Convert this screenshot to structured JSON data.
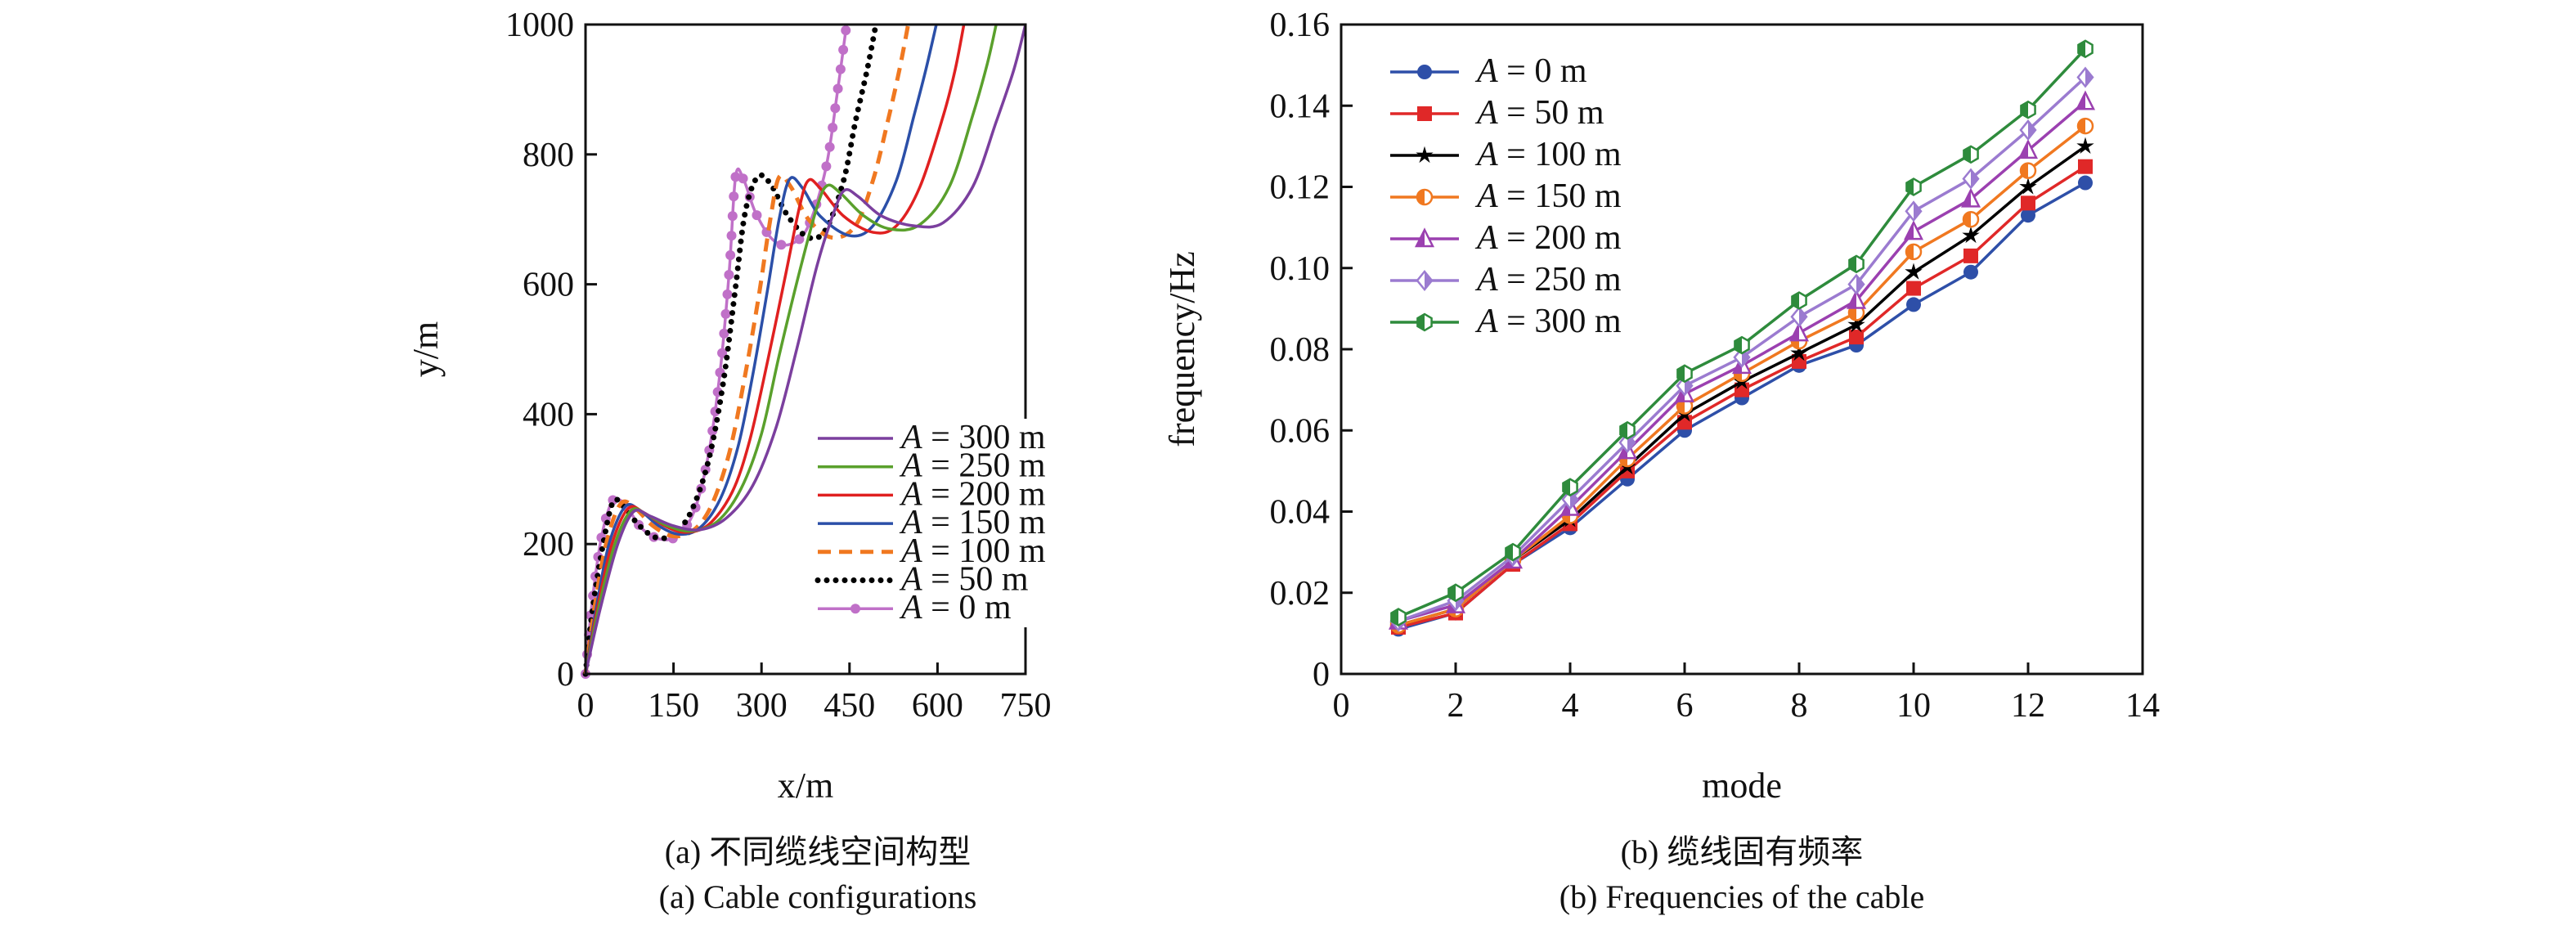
{
  "chart_data": [
    {
      "type": "line",
      "caption_cn": "(a) 不同缆线空间构型",
      "caption_en": "(a) Cable configurations",
      "xlabel": "x/m",
      "ylabel": "y/m",
      "xlim": [
        0,
        750
      ],
      "ylim": [
        0,
        1000
      ],
      "xticks": [
        0,
        150,
        300,
        450,
        600,
        750
      ],
      "yticks": [
        0,
        200,
        400,
        600,
        800,
        1000
      ],
      "grid": false,
      "legend_position": "bottom-right",
      "series": [
        {
          "name": "A = 300 m",
          "color": "#7B3F9E",
          "style": "solid",
          "x": [
            0,
            25,
            55,
            82,
            110,
            150,
            195,
            240,
            285,
            325,
            360,
            395,
            425,
            442,
            465,
            505,
            560,
            610,
            660,
            700,
            730,
            750
          ],
          "y": [
            0,
            100,
            200,
            250,
            243,
            228,
            222,
            240,
            290,
            380,
            500,
            630,
            715,
            745,
            735,
            705,
            690,
            695,
            750,
            850,
            930,
            1000
          ]
        },
        {
          "name": "A = 250 m",
          "color": "#5AA02C",
          "style": "solid",
          "x": [
            0,
            22,
            50,
            78,
            105,
            140,
            180,
            225,
            265,
            300,
            330,
            365,
            395,
            412,
            435,
            475,
            520,
            570,
            620,
            660,
            685,
            700
          ],
          "y": [
            0,
            100,
            200,
            252,
            245,
            228,
            220,
            235,
            285,
            370,
            490,
            620,
            720,
            752,
            740,
            705,
            685,
            692,
            750,
            860,
            940,
            1000
          ]
        },
        {
          "name": "A = 200 m",
          "color": "#E02020",
          "style": "solid",
          "x": [
            0,
            20,
            45,
            73,
            100,
            135,
            170,
            210,
            250,
            280,
            310,
            340,
            365,
            380,
            400,
            440,
            490,
            530,
            570,
            610,
            630,
            645
          ],
          "y": [
            0,
            100,
            200,
            255,
            248,
            228,
            218,
            230,
            280,
            360,
            480,
            610,
            720,
            760,
            748,
            705,
            680,
            690,
            750,
            860,
            930,
            1000
          ]
        },
        {
          "name": "A = 150 m",
          "color": "#2B4FA8",
          "style": "solid",
          "x": [
            0,
            18,
            40,
            68,
            95,
            125,
            160,
            195,
            230,
            260,
            285,
            310,
            330,
            348,
            370,
            400,
            450,
            490,
            530,
            560,
            580,
            598
          ],
          "y": [
            0,
            100,
            200,
            258,
            250,
            228,
            215,
            225,
            270,
            350,
            460,
            590,
            700,
            762,
            748,
            705,
            675,
            690,
            760,
            860,
            930,
            1000
          ]
        },
        {
          "name": "A = 100 m",
          "color": "#F07820",
          "style": "dashed",
          "x": [
            0,
            15,
            35,
            60,
            85,
            115,
            150,
            185,
            215,
            245,
            270,
            295,
            315,
            330,
            350,
            380,
            420,
            460,
            490,
            515,
            535,
            550
          ],
          "y": [
            0,
            100,
            200,
            262,
            255,
            228,
            212,
            222,
            260,
            340,
            450,
            580,
            700,
            765,
            750,
            700,
            672,
            690,
            760,
            850,
            930,
            1000
          ]
        },
        {
          "name": "A = 50 m",
          "color": "#000000",
          "style": "dotted",
          "x": [
            0,
            12,
            30,
            47,
            65,
            90,
            120,
            150,
            180,
            210,
            235,
            255,
            272,
            293,
            315,
            345,
            380,
            410,
            440,
            460,
            480,
            495
          ],
          "y": [
            0,
            100,
            200,
            265,
            258,
            230,
            210,
            215,
            250,
            330,
            450,
            590,
            710,
            765,
            755,
            705,
            672,
            685,
            760,
            850,
            930,
            1000
          ]
        },
        {
          "name": "A = 0 m",
          "color": "#C070C8",
          "style": "solid-dots",
          "x": [
            0,
            10,
            25,
            40,
            52,
            70,
            95,
            125,
            155,
            185,
            210,
            230,
            245,
            256,
            270,
            290,
            320,
            350,
            380,
            410,
            430,
            445
          ],
          "y": [
            0,
            100,
            200,
            255,
            270,
            258,
            225,
            208,
            212,
            250,
            340,
            470,
            620,
            767,
            760,
            710,
            668,
            662,
            690,
            780,
            900,
            1000
          ]
        }
      ]
    },
    {
      "type": "line",
      "caption_cn": "(b) 缆线固有频率",
      "caption_en": "(b) Frequencies of the cable",
      "xlabel": "mode",
      "ylabel": "frequency/Hz",
      "xlim": [
        0,
        14
      ],
      "ylim": [
        0,
        0.16
      ],
      "xticks": [
        0,
        2,
        4,
        6,
        8,
        10,
        12,
        14
      ],
      "yticks": [
        "0",
        "0.02",
        "0.04",
        "0.06",
        "0.08",
        "0.10",
        "0.12",
        "0.14",
        "0.16"
      ],
      "grid": false,
      "legend_position": "top-left",
      "x": [
        1,
        2,
        3,
        4,
        5,
        6,
        7,
        8,
        9,
        10,
        11,
        12,
        13
      ],
      "series": [
        {
          "name": "A = 0 m",
          "color": "#2E4FA8",
          "marker": "circle",
          "values": [
            0.011,
            0.015,
            0.027,
            0.036,
            0.048,
            0.06,
            0.068,
            0.076,
            0.081,
            0.091,
            0.099,
            0.113,
            0.121
          ]
        },
        {
          "name": "A = 50 m",
          "color": "#E02828",
          "marker": "square",
          "values": [
            0.0115,
            0.015,
            0.027,
            0.037,
            0.05,
            0.062,
            0.07,
            0.077,
            0.083,
            0.095,
            0.103,
            0.116,
            0.125
          ]
        },
        {
          "name": "A = 100 m",
          "color": "#000000",
          "marker": "star",
          "values": [
            0.012,
            0.016,
            0.028,
            0.038,
            0.051,
            0.064,
            0.072,
            0.079,
            0.086,
            0.099,
            0.108,
            0.12,
            0.13
          ]
        },
        {
          "name": "A = 150 m",
          "color": "#F07820",
          "marker": "half-circle",
          "values": [
            0.012,
            0.016,
            0.028,
            0.039,
            0.053,
            0.066,
            0.074,
            0.082,
            0.089,
            0.104,
            0.112,
            0.124,
            0.135
          ]
        },
        {
          "name": "A = 200 m",
          "color": "#9B40B0",
          "marker": "triangle",
          "values": [
            0.013,
            0.017,
            0.028,
            0.041,
            0.055,
            0.069,
            0.076,
            0.084,
            0.092,
            0.109,
            0.117,
            0.129,
            0.141
          ]
        },
        {
          "name": "A = 250 m",
          "color": "#9B7BD0",
          "marker": "diamond",
          "values": [
            0.013,
            0.018,
            0.029,
            0.043,
            0.057,
            0.071,
            0.078,
            0.088,
            0.096,
            0.114,
            0.122,
            0.134,
            0.147
          ]
        },
        {
          "name": "A = 300 m",
          "color": "#2E8B3C",
          "marker": "half-hexagon",
          "values": [
            0.014,
            0.02,
            0.03,
            0.046,
            0.06,
            0.074,
            0.081,
            0.092,
            0.101,
            0.12,
            0.128,
            0.139,
            0.154
          ]
        }
      ]
    }
  ]
}
